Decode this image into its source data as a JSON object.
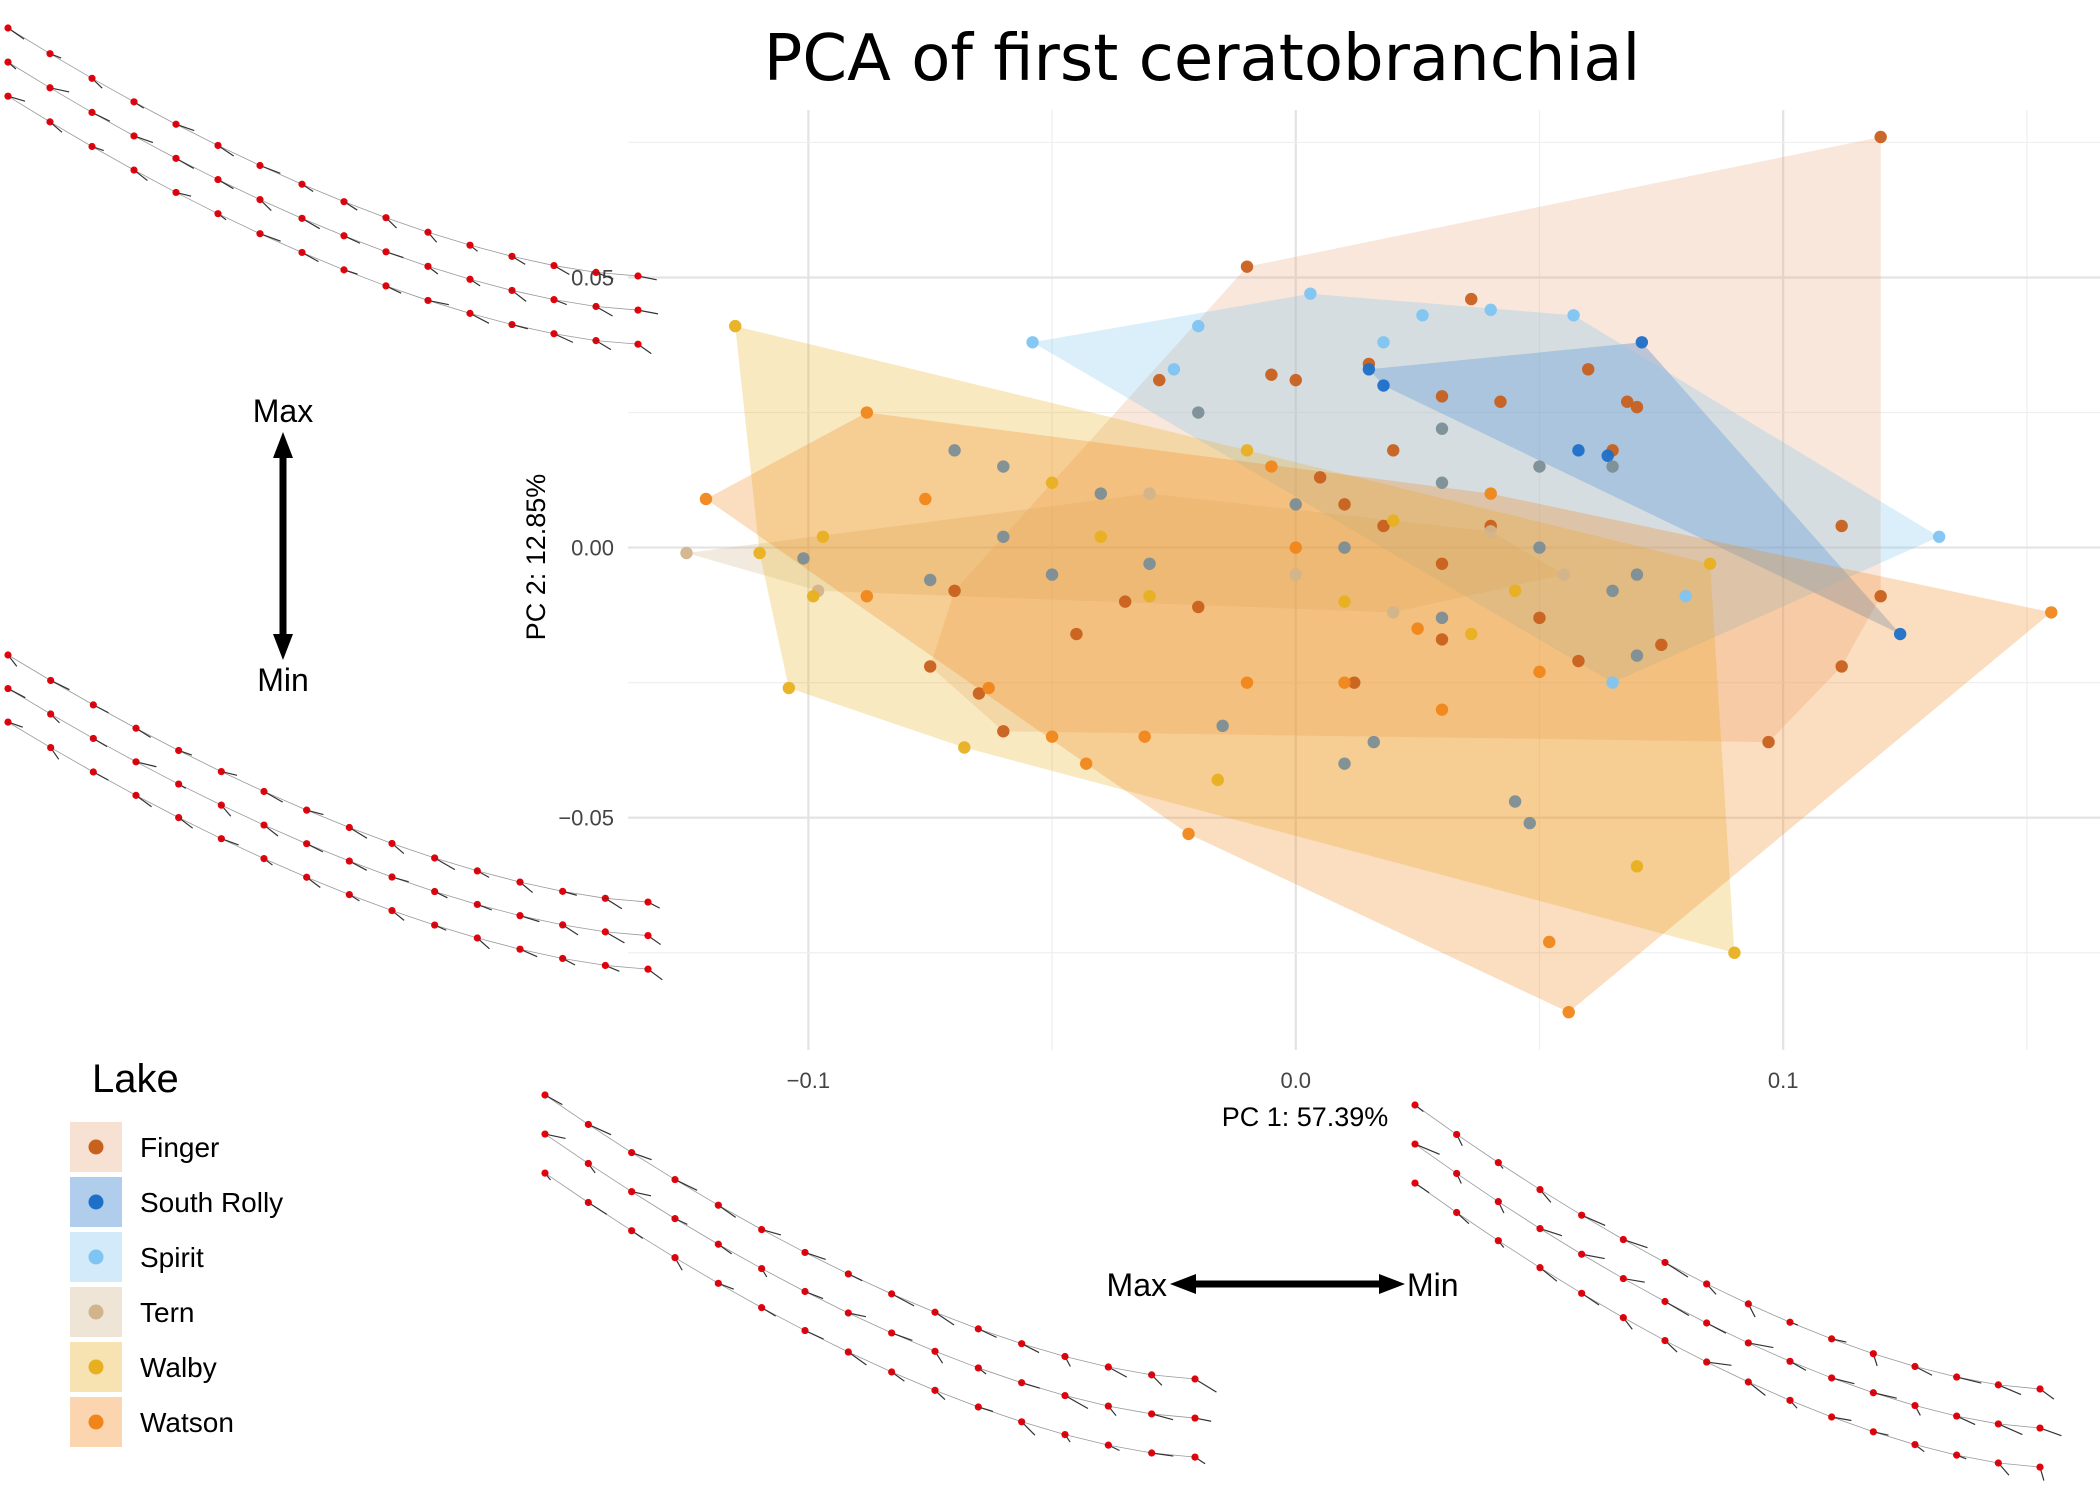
{
  "chart_data": {
    "type": "scatter",
    "title": "PCA of first ceratobranchial",
    "xlabel": "PC 1: 57.39%",
    "ylabel": "PC 2: 12.85%",
    "xlim": [
      -0.137,
      0.165
    ],
    "ylim": [
      -0.093,
      0.081
    ],
    "xticks": [
      -0.1,
      0.0,
      0.1
    ],
    "xtick_labels": [
      "−0.1",
      "0.0",
      "0.1"
    ],
    "yticks": [
      -0.05,
      0.0,
      0.05
    ],
    "ytick_labels": [
      "−0.05",
      "0.00",
      "0.05"
    ],
    "grid": true,
    "hulls": true,
    "legend": {
      "title": "Lake",
      "position": "bottom-left"
    },
    "series": [
      {
        "name": "Finger",
        "color": "#C8601E",
        "hull_color": "#E8A882",
        "points": [
          [
            0.12,
            0.076
          ],
          [
            -0.01,
            0.052
          ],
          [
            0.036,
            0.046
          ],
          [
            0.06,
            0.033
          ],
          [
            -0.028,
            0.031
          ],
          [
            0.015,
            0.034
          ],
          [
            -0.005,
            0.032
          ],
          [
            0.0,
            0.031
          ],
          [
            0.03,
            0.028
          ],
          [
            0.042,
            0.027
          ],
          [
            0.068,
            0.027
          ],
          [
            0.07,
            0.026
          ],
          [
            0.065,
            0.018
          ],
          [
            0.112,
            0.004
          ],
          [
            0.12,
            -0.009
          ],
          [
            0.112,
            -0.022
          ],
          [
            0.097,
            -0.036
          ],
          [
            -0.075,
            -0.022
          ],
          [
            -0.07,
            -0.008
          ],
          [
            -0.065,
            -0.027
          ],
          [
            -0.06,
            -0.034
          ],
          [
            -0.045,
            -0.016
          ],
          [
            -0.02,
            -0.011
          ],
          [
            0.012,
            -0.025
          ],
          [
            -0.035,
            -0.01
          ],
          [
            0.03,
            -0.003
          ],
          [
            0.04,
            0.004
          ],
          [
            0.05,
            -0.013
          ],
          [
            0.005,
            0.013
          ],
          [
            0.02,
            0.018
          ],
          [
            0.058,
            -0.021
          ],
          [
            0.018,
            0.004
          ],
          [
            0.03,
            -0.017
          ],
          [
            0.075,
            -0.018
          ],
          [
            0.01,
            0.008
          ]
        ]
      },
      {
        "name": "South Rolly",
        "color": "#1E6FC8",
        "points": [
          [
            0.071,
            0.038
          ],
          [
            0.015,
            0.033
          ],
          [
            0.018,
            0.03
          ],
          [
            0.124,
            -0.016
          ],
          [
            0.058,
            0.018
          ],
          [
            0.064,
            0.017
          ]
        ]
      },
      {
        "name": "Spirit",
        "color": "#7FC4F2",
        "points": [
          [
            -0.054,
            0.038
          ],
          [
            0.132,
            0.002
          ],
          [
            0.003,
            0.047
          ],
          [
            0.026,
            0.043
          ],
          [
            0.04,
            0.044
          ],
          [
            0.057,
            0.043
          ],
          [
            0.018,
            0.038
          ],
          [
            -0.025,
            0.033
          ],
          [
            -0.02,
            0.041
          ],
          [
            0.08,
            -0.009
          ],
          [
            0.065,
            -0.025
          ]
        ]
      },
      {
        "name": "Tern",
        "color": "#D2B48C",
        "points": [
          [
            -0.125,
            -0.001
          ],
          [
            -0.098,
            -0.008
          ],
          [
            -0.05,
            -0.005
          ],
          [
            -0.03,
            0.01
          ],
          [
            0.0,
            -0.005
          ],
          [
            0.02,
            -0.012
          ],
          [
            0.04,
            0.003
          ],
          [
            0.055,
            -0.005
          ]
        ]
      },
      {
        "name": "Walby",
        "color": "#E8B020",
        "points": [
          [
            -0.115,
            0.041
          ],
          [
            -0.104,
            -0.026
          ],
          [
            -0.099,
            -0.009
          ],
          [
            -0.097,
            0.002
          ],
          [
            -0.11,
            -0.001
          ],
          [
            -0.068,
            -0.037
          ],
          [
            -0.016,
            -0.043
          ],
          [
            0.036,
            -0.016
          ],
          [
            0.085,
            -0.003
          ],
          [
            0.09,
            -0.075
          ],
          [
            0.07,
            -0.059
          ],
          [
            -0.04,
            0.002
          ],
          [
            -0.03,
            -0.009
          ],
          [
            0.01,
            -0.01
          ],
          [
            0.02,
            0.005
          ],
          [
            0.045,
            -0.008
          ],
          [
            -0.05,
            0.012
          ],
          [
            -0.01,
            0.018
          ]
        ]
      },
      {
        "name": "Watson",
        "color": "#F0861A",
        "points": [
          [
            -0.121,
            0.009
          ],
          [
            -0.088,
            0.025
          ],
          [
            -0.088,
            -0.009
          ],
          [
            -0.076,
            0.009
          ],
          [
            -0.063,
            -0.026
          ],
          [
            -0.05,
            -0.035
          ],
          [
            -0.043,
            -0.04
          ],
          [
            -0.031,
            -0.035
          ],
          [
            -0.022,
            -0.053
          ],
          [
            0.052,
            -0.073
          ],
          [
            0.056,
            -0.086
          ],
          [
            0.155,
            -0.012
          ],
          [
            0.03,
            -0.03
          ],
          [
            0.01,
            -0.025
          ],
          [
            -0.01,
            -0.025
          ],
          [
            0.05,
            -0.023
          ],
          [
            -0.005,
            0.015
          ],
          [
            0.04,
            0.01
          ],
          [
            0.0,
            0.0
          ],
          [
            0.025,
            -0.015
          ]
        ]
      },
      {
        "name": "",
        "color": "#7C8E96",
        "points": [
          [
            -0.101,
            -0.002
          ],
          [
            -0.075,
            -0.006
          ],
          [
            -0.06,
            0.015
          ],
          [
            -0.04,
            0.01
          ],
          [
            -0.02,
            0.025
          ],
          [
            0.0,
            0.008
          ],
          [
            0.03,
            0.012
          ],
          [
            0.05,
            0.015
          ],
          [
            0.07,
            -0.005
          ],
          [
            0.07,
            -0.02
          ],
          [
            0.045,
            -0.047
          ],
          [
            0.048,
            -0.051
          ],
          [
            0.01,
            -0.04
          ],
          [
            -0.015,
            -0.033
          ],
          [
            0.016,
            -0.036
          ],
          [
            0.03,
            -0.013
          ],
          [
            0.065,
            0.015
          ],
          [
            -0.06,
            0.002
          ],
          [
            -0.05,
            -0.005
          ],
          [
            -0.03,
            -0.003
          ],
          [
            0.01,
            0.0
          ],
          [
            0.05,
            0.0
          ],
          [
            -0.07,
            0.018
          ],
          [
            0.03,
            0.022
          ],
          [
            0.065,
            -0.008
          ]
        ]
      }
    ]
  },
  "annotations": {
    "left_max": "Max",
    "left_min": "Min",
    "bottom_max": "Max",
    "bottom_min": "Min"
  },
  "shapes": {
    "landmark_color": "#E8000B",
    "vector_color": "#333333"
  }
}
